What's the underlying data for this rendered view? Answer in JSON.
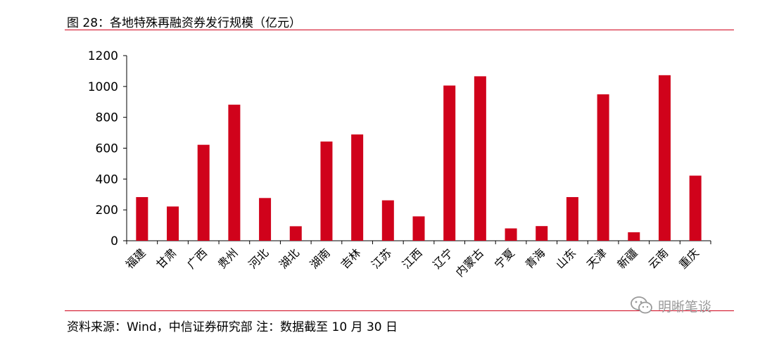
{
  "header": {
    "title": "图 28：各地特殊再融资券发行规模（亿元）"
  },
  "footer": {
    "source": "资料来源：Wind，中信证券研究部 注：数据截至 10 月 30 日"
  },
  "watermark": {
    "text": "明晰笔谈",
    "icon": "wechat-icon"
  },
  "colors": {
    "bar": "#d0021b",
    "rule": "#d0021b",
    "axis": "#000000"
  },
  "chart_data": {
    "type": "bar",
    "title": "",
    "xlabel": "",
    "ylabel": "",
    "categories": [
      "福建",
      "甘肃",
      "广西",
      "贵州",
      "河北",
      "湖北",
      "湖南",
      "吉林",
      "江苏",
      "江西",
      "辽宁",
      "内蒙古",
      "宁夏",
      "青海",
      "山东",
      "天津",
      "新疆",
      "云南",
      "重庆"
    ],
    "values": [
      283,
      222,
      622,
      882,
      277,
      94,
      643,
      689,
      262,
      158,
      1006,
      1066,
      80,
      95,
      283,
      949,
      55,
      1073,
      422
    ],
    "ylim": [
      0,
      1200
    ],
    "yticks": [
      "0",
      "200",
      "400",
      "600",
      "800",
      "1000",
      "1200"
    ],
    "grid": false,
    "legend": "none"
  }
}
